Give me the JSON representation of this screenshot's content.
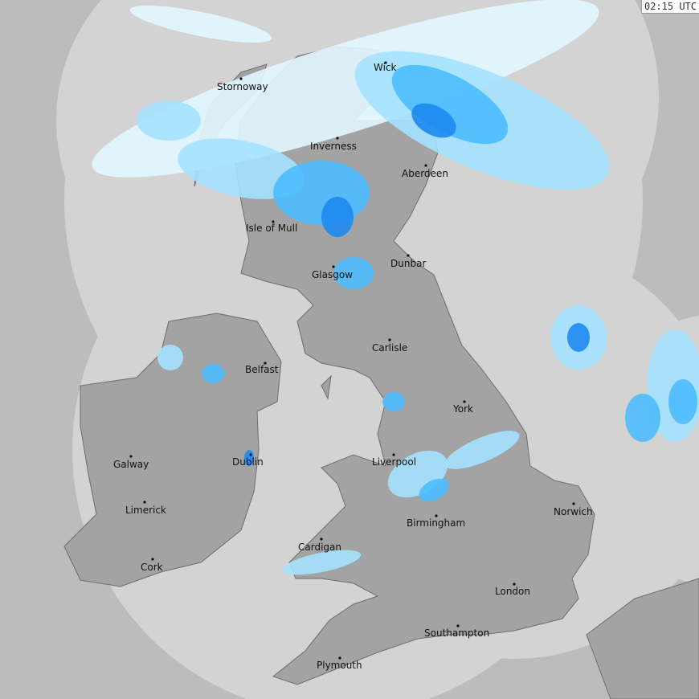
{
  "timestamp": "02:15 UTC",
  "map_type": "rainfall-radar",
  "colors": {
    "sea_out_of_coverage": "#bcbcbc",
    "sea_in_coverage": "#d3d3d3",
    "land": "#a3a3a3",
    "coast": "#6e6e6e",
    "rain_very_light": "#e2f6ff",
    "rain_light": "#a4e2ff",
    "rain_moderate": "#4cbcff",
    "rain_heavy": "#1e88f0",
    "rain_very_heavy": "#1446e0"
  },
  "cities": [
    {
      "name": "Wick"
    },
    {
      "name": "Stornoway"
    },
    {
      "name": "Inverness"
    },
    {
      "name": "Aberdeen"
    },
    {
      "name": "Isle of Mull"
    },
    {
      "name": "Dunbar"
    },
    {
      "name": "Glasgow"
    },
    {
      "name": "Carlisle"
    },
    {
      "name": "Belfast"
    },
    {
      "name": "York"
    },
    {
      "name": "Galway"
    },
    {
      "name": "Dublin"
    },
    {
      "name": "Liverpool"
    },
    {
      "name": "Limerick"
    },
    {
      "name": "Norwich"
    },
    {
      "name": "Birmingham"
    },
    {
      "name": "Cardigan"
    },
    {
      "name": "Cork"
    },
    {
      "name": "London"
    },
    {
      "name": "Southampton"
    },
    {
      "name": "Plymouth"
    }
  ]
}
